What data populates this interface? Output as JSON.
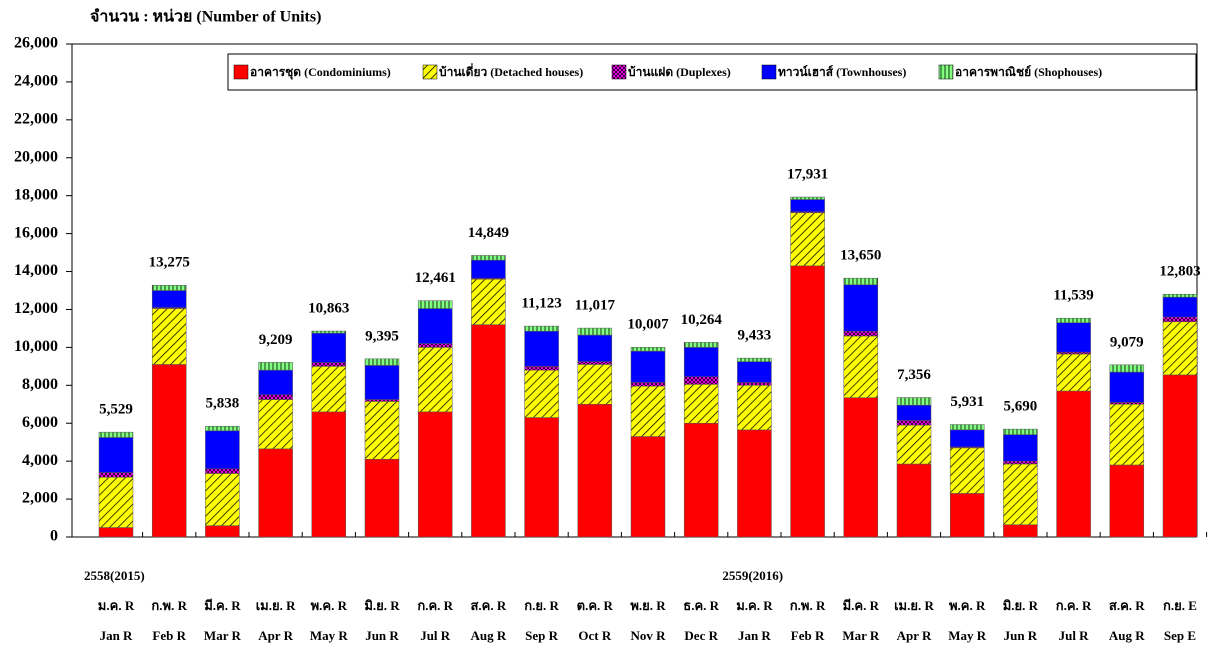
{
  "chart_data": {
    "type": "stacked_bar",
    "y_axis_label": "จำนวน : หน่วย (Number of Units)",
    "categories": [
      "Jan R",
      "Feb R",
      "Mar R",
      "Apr R",
      "May R",
      "Jun R",
      "Jul R",
      "Aug R",
      "Sep R",
      "Oct R",
      "Nov R",
      "Dec R",
      "Jan R",
      "Feb R",
      "Mar R",
      "Apr R",
      "May R",
      "Jun R",
      "Jul R",
      "Aug R",
      "Sep E"
    ],
    "thai_categories": [
      "ม.ค. R",
      "ก.พ. R",
      "มี.ค. R",
      "เม.ย. R",
      "พ.ค. R",
      "มิ.ย. R",
      "ก.ค. R",
      "ส.ค. R",
      "ก.ย. R",
      "ต.ค. R",
      "พ.ย. R",
      "ธ.ค. R",
      "ม.ค. R",
      "ก.พ. R",
      "มี.ค. R",
      "เม.ย. R",
      "พ.ค. R",
      "มิ.ย. R",
      "ก.ค. R",
      "ส.ค. R",
      "ก.ย. E"
    ],
    "year_labels": [
      "2558(2015)",
      null,
      null,
      null,
      null,
      null,
      null,
      null,
      null,
      null,
      null,
      null,
      "2559(2016)",
      null,
      null,
      null,
      null,
      null,
      null,
      null,
      null
    ],
    "series": [
      {
        "name": "อาคารชุด (Condominiums)",
        "color": "#ff0000",
        "values": [
          500,
          9100,
          600,
          4650,
          6600,
          4100,
          6600,
          11200,
          6300,
          7000,
          5300,
          6000,
          5650,
          14300,
          7350,
          3850,
          2300,
          650,
          7700,
          3800,
          8550
        ]
      },
      {
        "name": "บ้านเดี่ยว (Detached houses)",
        "color": "#ffff00",
        "values": [
          2650,
          2950,
          2750,
          2600,
          2400,
          3050,
          3400,
          2400,
          2500,
          2100,
          2650,
          2050,
          2350,
          2800,
          3250,
          2050,
          2400,
          3200,
          1950,
          3200,
          2800
        ]
      },
      {
        "name": "บ้านแฝด (Duplexes)",
        "color": "#ff00ff",
        "values": [
          250,
          50,
          250,
          250,
          200,
          100,
          200,
          50,
          200,
          150,
          200,
          400,
          150,
          50,
          250,
          250,
          50,
          150,
          100,
          100,
          250
        ]
      },
      {
        "name": "ทาวน์เฮาส์ (Townhouses)",
        "color": "#0000ff",
        "values": [
          1850,
          900,
          2000,
          1300,
          1550,
          1800,
          1850,
          950,
          1850,
          1400,
          1650,
          1550,
          1100,
          650,
          2450,
          800,
          900,
          1400,
          1550,
          1600,
          1050
        ]
      },
      {
        "name": "อาคารพาณิชย์ (Shophouses)",
        "color": "#80ff80",
        "values": [
          279,
          275,
          238,
          409,
          113,
          345,
          411,
          249,
          273,
          367,
          207,
          264,
          183,
          131,
          350,
          406,
          281,
          290,
          239,
          379,
          153
        ]
      }
    ],
    "totals": [
      5529,
      13275,
      5838,
      9209,
      10863,
      9395,
      12461,
      14849,
      11123,
      11017,
      10007,
      10264,
      9433,
      17931,
      13650,
      7356,
      5931,
      5690,
      11539,
      9079,
      12803
    ],
    "total_labels": [
      "5,529",
      "13,275",
      "5,838",
      "9,209",
      "10,863",
      "9,395",
      "12,461",
      "14,849",
      "11,123",
      "11,017",
      "10,007",
      "10,264",
      "9,433",
      "17,931",
      "13,650",
      "7,356",
      "5,931",
      "5,690",
      "11,539",
      "9,079",
      "12,803"
    ],
    "ylim": [
      0,
      26000
    ],
    "yticks": [
      0,
      {
        "value": 2000,
        "label": "2,000"
      },
      {
        "value": 4000,
        "label": "4,000"
      },
      {
        "value": 6000,
        "label": "6,000"
      },
      {
        "value": 8000,
        "label": "8,000"
      },
      {
        "value": 10000,
        "label": "10,000"
      },
      {
        "value": 12000,
        "label": "12,000"
      },
      {
        "value": 14000,
        "label": "14,000"
      },
      {
        "value": 16000,
        "label": "16,000"
      },
      {
        "value": 18000,
        "label": "18,000"
      },
      {
        "value": 20000,
        "label": "20,000"
      },
      {
        "value": 22000,
        "label": "22,000"
      },
      {
        "value": 24000,
        "label": "24,000"
      },
      {
        "value": 26000,
        "label": "26,000"
      }
    ],
    "legend": "top-right"
  }
}
